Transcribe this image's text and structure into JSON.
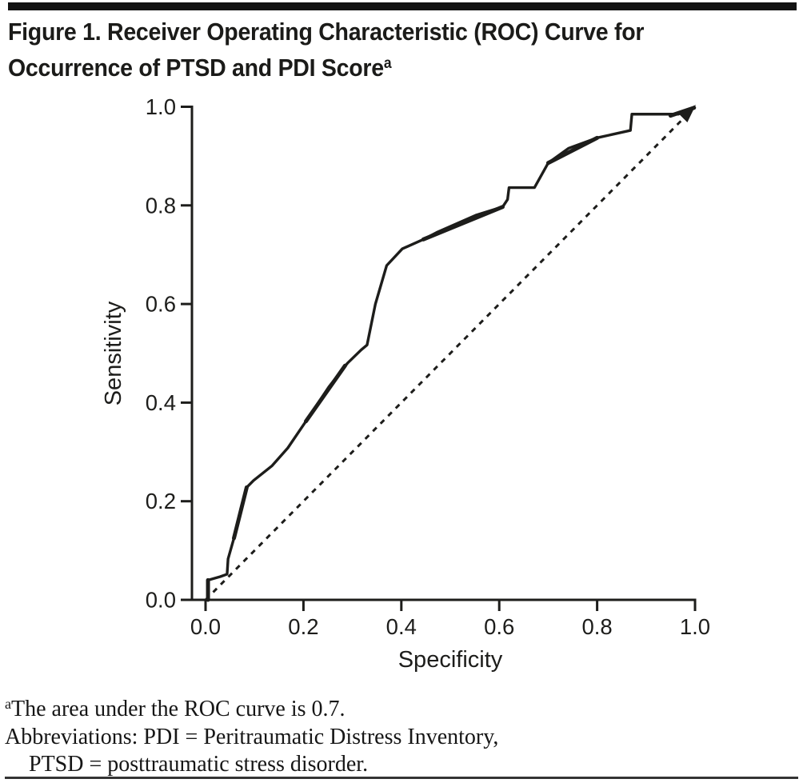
{
  "header": {
    "title_line1": "Figure 1. Receiver Operating Characteristic (ROC) Curve for",
    "title_line2": "Occurrence of PTSD and PDI Score",
    "title_superscript": "a"
  },
  "chart_data": {
    "type": "line",
    "title": "",
    "xlabel": "Specificity",
    "ylabel": "Sensitivity",
    "xlim": [
      0.0,
      1.0
    ],
    "ylim": [
      0.0,
      1.0
    ],
    "xticks": [
      0.0,
      0.2,
      0.4,
      0.6,
      0.8,
      1.0
    ],
    "yticks": [
      0.0,
      0.2,
      0.4,
      0.6,
      0.8,
      1.0
    ],
    "xtick_labels": [
      "0.0",
      "0.2",
      "0.4",
      "0.6",
      "0.8",
      "1.0"
    ],
    "ytick_labels": [
      "0.0",
      "0.2",
      "0.4",
      "0.6",
      "0.8",
      "1.0"
    ],
    "grid": false,
    "legend_position": "none",
    "auc": 0.7,
    "series": [
      {
        "name": "ROC curve",
        "style": "solid",
        "points": [
          [
            0.005,
            0.0
          ],
          [
            0.005,
            0.04
          ],
          [
            0.03,
            0.047
          ],
          [
            0.044,
            0.052
          ],
          [
            0.046,
            0.083
          ],
          [
            0.058,
            0.125
          ],
          [
            0.072,
            0.185
          ],
          [
            0.084,
            0.228
          ],
          [
            0.098,
            0.242
          ],
          [
            0.136,
            0.272
          ],
          [
            0.168,
            0.308
          ],
          [
            0.205,
            0.362
          ],
          [
            0.252,
            0.432
          ],
          [
            0.29,
            0.48
          ],
          [
            0.318,
            0.507
          ],
          [
            0.33,
            0.517
          ],
          [
            0.347,
            0.6
          ],
          [
            0.37,
            0.678
          ],
          [
            0.402,
            0.712
          ],
          [
            0.445,
            0.731
          ],
          [
            0.472,
            0.745
          ],
          [
            0.552,
            0.78
          ],
          [
            0.607,
            0.797
          ],
          [
            0.617,
            0.812
          ],
          [
            0.62,
            0.836
          ],
          [
            0.672,
            0.836
          ],
          [
            0.7,
            0.886
          ],
          [
            0.742,
            0.916
          ],
          [
            0.8,
            0.937
          ],
          [
            0.868,
            0.952
          ],
          [
            0.871,
            0.985
          ],
          [
            0.966,
            0.985
          ],
          [
            1.0,
            1.0
          ]
        ]
      },
      {
        "name": "Reference diagonal (chance line)",
        "style": "dashed",
        "arrowhead": true,
        "points": [
          [
            0.0,
            0.0
          ],
          [
            1.0,
            1.0
          ]
        ]
      }
    ],
    "bold_segments": [
      [
        [
          0.005,
          0.0
        ],
        [
          0.005,
          0.04
        ]
      ],
      [
        [
          0.058,
          0.125
        ],
        [
          0.084,
          0.228
        ]
      ],
      [
        [
          0.205,
          0.362
        ],
        [
          0.285,
          0.475
        ]
      ],
      [
        [
          0.445,
          0.731
        ],
        [
          0.607,
          0.797
        ]
      ],
      [
        [
          0.7,
          0.886
        ],
        [
          0.8,
          0.937
        ]
      ],
      [
        [
          0.95,
          0.982
        ],
        [
          0.998,
          0.998
        ]
      ]
    ]
  },
  "footnotes": {
    "note_superscript": "a",
    "note_text": "The area under the ROC curve is 0.7.",
    "abbrev_line1": "Abbreviations: PDI = Peritraumatic Distress Inventory,",
    "abbrev_line2": "PTSD = posttraumatic stress disorder."
  },
  "colors": {
    "ink": "#1d1d1b",
    "background": "#ffffff",
    "top_bar": "#131313",
    "bottom_rule": "#343434"
  }
}
